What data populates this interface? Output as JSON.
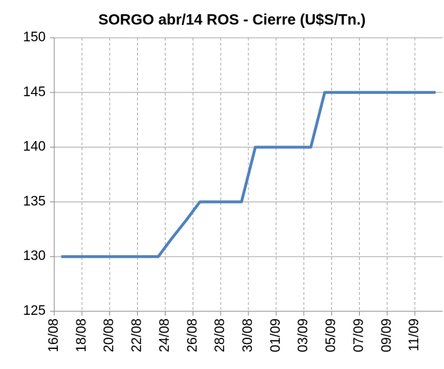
{
  "chart_data": {
    "type": "line",
    "title": "SORGO abr/14 ROS - Cierre (U$S/Tn.)",
    "categories": [
      "16/08",
      null,
      "18/08",
      null,
      "20/08",
      null,
      "22/08",
      null,
      "24/08",
      null,
      "26/08",
      null,
      "28/08",
      null,
      "30/08",
      null,
      "01/09",
      null,
      "03/09",
      null,
      "05/09",
      null,
      "07/09",
      null,
      "09/09",
      null,
      "11/09",
      null
    ],
    "series": [
      {
        "name": "Cierre",
        "color": "#4f81bd",
        "values": [
          130,
          130,
          130,
          130,
          130,
          130,
          130,
          130,
          131.7,
          133.3,
          135,
          135,
          135,
          135,
          140,
          140,
          140,
          140,
          140,
          145,
          145,
          145,
          145,
          145,
          145,
          145,
          145,
          145
        ]
      }
    ],
    "ylim": [
      125,
      150
    ],
    "yticks": [
      125,
      130,
      135,
      140,
      145,
      150
    ],
    "grid": true
  }
}
